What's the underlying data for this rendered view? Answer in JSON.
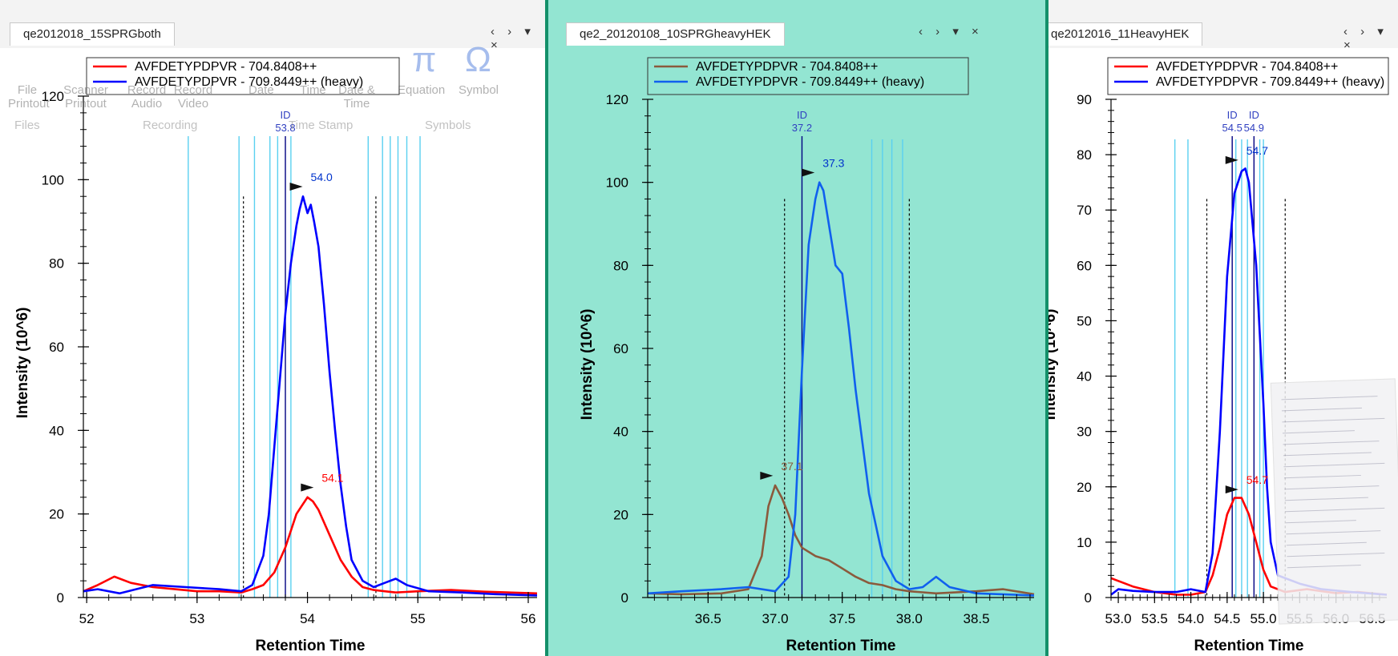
{
  "panels": [
    {
      "id": "p1",
      "tab": "qe2012018_15SPRGboth",
      "tab_controls": "‹ › ▾ ×",
      "chart_type": "line",
      "xlabel": "Retention Time",
      "ylabel": "Intensity (10^6)",
      "xlim": [
        51.97,
        56.08
      ],
      "ylim": [
        0,
        120
      ],
      "xticks": [
        "52",
        "53",
        "54",
        "55",
        "56"
      ],
      "xtick_values": [
        52,
        53,
        54,
        55,
        56
      ],
      "yticks": [
        "0",
        "20",
        "40",
        "60",
        "80",
        "100",
        "120"
      ],
      "ytick_values": [
        0,
        20,
        40,
        60,
        80,
        100,
        120
      ],
      "legend": [
        {
          "label": "AVFDETYPDPVR - 704.8408++",
          "color": "#ff0000"
        },
        {
          "label": "AVFDETYPDPVR - 709.8449++ (heavy)",
          "color": "#0000ff"
        }
      ],
      "series": [
        {
          "name": "AVFDETYPDPVR - 704.8408++",
          "color": "#ff0000",
          "x": [
            51.97,
            52.1,
            52.25,
            52.4,
            52.6,
            52.8,
            53.0,
            53.2,
            53.4,
            53.5,
            53.6,
            53.7,
            53.8,
            53.85,
            53.9,
            53.95,
            54.0,
            54.05,
            54.1,
            54.2,
            54.3,
            54.4,
            54.5,
            54.6,
            54.7,
            54.8,
            55.0,
            55.3,
            55.6,
            56.08
          ],
          "y": [
            1.5,
            3,
            5,
            3.5,
            2.5,
            2,
            1.5,
            1.5,
            1.2,
            2,
            3,
            6,
            12,
            16,
            20,
            22,
            24,
            23,
            21,
            15,
            9,
            5,
            2.5,
            1.8,
            1.5,
            1.2,
            1.5,
            1.8,
            1.4,
            1.0
          ]
        },
        {
          "name": "AVFDETYPDPVR - 709.8449++ (heavy)",
          "color": "#0000ff",
          "x": [
            51.97,
            52.1,
            52.3,
            52.6,
            52.9,
            53.2,
            53.4,
            53.5,
            53.6,
            53.65,
            53.7,
            53.75,
            53.8,
            53.85,
            53.9,
            53.93,
            53.96,
            54.0,
            54.03,
            54.06,
            54.1,
            54.15,
            54.2,
            54.25,
            54.3,
            54.35,
            54.4,
            54.5,
            54.6,
            54.7,
            54.8,
            54.9,
            55.1,
            55.4,
            55.7,
            56.08
          ],
          "y": [
            1.5,
            2,
            1,
            3,
            2.5,
            2,
            1.5,
            3,
            10,
            20,
            36,
            52,
            68,
            80,
            89,
            93,
            96,
            92,
            94,
            90,
            84,
            70,
            54,
            40,
            27,
            17,
            9,
            4,
            2.5,
            3.5,
            4.5,
            3,
            1.5,
            1.2,
            0.8,
            0.5
          ]
        }
      ],
      "apex_labels": [
        {
          "text": "54.0",
          "x": 54.0,
          "y": 97,
          "color": "#0033cc"
        },
        {
          "text": "54.1",
          "x": 54.1,
          "y": 25,
          "color": "#ff0000"
        }
      ],
      "id_markers": [
        {
          "label": "ID",
          "value": "53.8",
          "x": 53.8
        }
      ],
      "integration_bounds": [
        53.42,
        54.62
      ],
      "cyan_lines": [
        52.92,
        53.38,
        53.52,
        53.66,
        53.73,
        53.85,
        54.55,
        54.68,
        54.75,
        54.82,
        54.9,
        55.02
      ]
    },
    {
      "id": "p2",
      "tab": "qe2_20120108_10SPRGheavyHEK",
      "tab_controls": "‹ › ▾ ×",
      "chart_type": "line",
      "xlabel": "Retention Time",
      "ylabel": "Intensity (10^6)",
      "xlim": [
        36.05,
        38.93
      ],
      "ylim": [
        0,
        120
      ],
      "xticks": [
        "36.5",
        "37.0",
        "37.5",
        "38.0",
        "38.5"
      ],
      "xtick_values": [
        36.5,
        37.0,
        37.5,
        38.0,
        38.5
      ],
      "yticks": [
        "0",
        "20",
        "40",
        "60",
        "80",
        "100",
        "120"
      ],
      "ytick_values": [
        0,
        20,
        40,
        60,
        80,
        100,
        120
      ],
      "legend": [
        {
          "label": "AVFDETYPDPVR - 704.8408++",
          "color": "#8b5a3c"
        },
        {
          "label": "AVFDETYPDPVR - 709.8449++ (heavy)",
          "color": "#1060ee"
        }
      ],
      "series": [
        {
          "name": "AVFDETYPDPVR - 704.8408++",
          "color": "#8b5a3c",
          "x": [
            36.05,
            36.3,
            36.6,
            36.8,
            36.9,
            36.95,
            37.0,
            37.05,
            37.1,
            37.15,
            37.2,
            37.3,
            37.4,
            37.5,
            37.6,
            37.7,
            37.8,
            37.9,
            38.0,
            38.2,
            38.5,
            38.7,
            38.93
          ],
          "y": [
            1,
            0.8,
            1,
            2,
            10,
            22,
            27,
            24,
            20,
            15,
            12,
            10,
            9,
            7,
            5,
            3.5,
            3,
            2,
            1.5,
            1,
            1.5,
            2,
            0.8
          ]
        },
        {
          "name": "AVFDETYPDPVR - 709.8449++ (heavy)",
          "color": "#1060ee",
          "x": [
            36.05,
            36.3,
            36.6,
            36.8,
            37.0,
            37.1,
            37.15,
            37.2,
            37.25,
            37.3,
            37.33,
            37.36,
            37.4,
            37.45,
            37.5,
            37.55,
            37.6,
            37.7,
            37.8,
            37.9,
            38.0,
            38.1,
            38.2,
            38.3,
            38.5,
            38.93
          ],
          "y": [
            1,
            1.5,
            2,
            2.5,
            1.5,
            5,
            20,
            55,
            85,
            96,
            100,
            98,
            90,
            80,
            78,
            65,
            50,
            25,
            10,
            4,
            2,
            2.5,
            5,
            2.5,
            1,
            0.5
          ]
        }
      ],
      "apex_labels": [
        {
          "text": "37.3",
          "x": 37.33,
          "y": 101,
          "color": "#0033cc"
        },
        {
          "text": "37.1",
          "x": 37.02,
          "y": 28,
          "color": "#8b5a3c"
        }
      ],
      "id_markers": [
        {
          "label": "ID",
          "value": "37.2",
          "x": 37.2
        }
      ],
      "integration_bounds": [
        37.07,
        38.0
      ],
      "cyan_lines": [
        37.72,
        37.8,
        37.87,
        37.95
      ]
    },
    {
      "id": "p3",
      "tab": "qe2012016_11HeavyHEK",
      "tab_controls": "‹ › ▾ ×",
      "chart_type": "line",
      "xlabel": "Retention Time",
      "ylabel": "Intensity (10^6)",
      "xlim": [
        52.9,
        56.7
      ],
      "ylim": [
        0,
        90
      ],
      "xticks": [
        "53.0",
        "53.5",
        "54.0",
        "54.5",
        "55.0",
        "55.5",
        "56.0",
        "56.5"
      ],
      "xtick_values": [
        53.0,
        53.5,
        54.0,
        54.5,
        55.0,
        55.5,
        56.0,
        56.5
      ],
      "yticks": [
        "0",
        "10",
        "20",
        "30",
        "40",
        "50",
        "60",
        "70",
        "80",
        "90"
      ],
      "ytick_values": [
        0,
        10,
        20,
        30,
        40,
        50,
        60,
        70,
        80,
        90
      ],
      "legend": [
        {
          "label": "AVFDETYPDPVR - 704.8408++",
          "color": "#ff0000"
        },
        {
          "label": "AVFDETYPDPVR - 709.8449++ (heavy)",
          "color": "#0000ff"
        }
      ],
      "series": [
        {
          "name": "AVFDETYPDPVR - 704.8408++",
          "color": "#ff0000",
          "x": [
            52.9,
            53.0,
            53.2,
            53.5,
            53.8,
            54.0,
            54.2,
            54.3,
            54.4,
            54.5,
            54.6,
            54.7,
            54.8,
            54.9,
            55.0,
            55.1,
            55.3,
            55.6,
            56.0,
            56.3,
            56.7
          ],
          "y": [
            3.5,
            3,
            2,
            1,
            0.5,
            0.5,
            1,
            4,
            9,
            15,
            18,
            18,
            15,
            10,
            5,
            2,
            1,
            1.5,
            0.8,
            1,
            0.5
          ]
        },
        {
          "name": "AVFDETYPDPVR - 709.8449++ (heavy)",
          "color": "#0000ff",
          "x": [
            52.9,
            53.0,
            53.2,
            53.5,
            53.8,
            54.0,
            54.2,
            54.3,
            54.4,
            54.5,
            54.6,
            54.7,
            54.75,
            54.8,
            54.9,
            55.0,
            55.05,
            55.1,
            55.2,
            55.5,
            55.8,
            56.2,
            56.7
          ],
          "y": [
            0.5,
            1.5,
            1.2,
            1,
            1,
            1.5,
            1,
            8,
            30,
            58,
            73,
            77,
            77.5,
            75,
            60,
            35,
            20,
            10,
            4,
            2.5,
            1.5,
            1,
            0.5
          ]
        }
      ],
      "apex_labels": [
        {
          "text": "54.7",
          "x": 54.72,
          "y": 78,
          "color": "#0033cc"
        },
        {
          "text": "54.7",
          "x": 54.72,
          "y": 18.5,
          "color": "#ff0000"
        }
      ],
      "id_markers": [
        {
          "label": "ID",
          "value": "54.5",
          "x": 54.57
        },
        {
          "label": "ID",
          "value": "54.9",
          "x": 54.87
        }
      ],
      "integration_bounds": [
        54.22,
        55.3
      ],
      "cyan_lines": [
        53.78,
        53.96,
        54.62,
        54.7,
        54.78,
        54.95,
        55.0
      ]
    }
  ],
  "ribbon": {
    "items": [
      "File Printout",
      "Scanner Printout",
      "Record Audio",
      "Record Video",
      "Date",
      "Time",
      "Date & Time",
      "Equation",
      "Symbol"
    ],
    "groups": [
      "Files",
      "Recording",
      "Time Stamp",
      "Symbols"
    ],
    "glyphs": {
      "pi": "π",
      "omega": "Ω"
    }
  },
  "colors": {
    "highlight_fill": "#93e5d2",
    "highlight_border": "#14906a",
    "cyan_line": "#5ad0f0",
    "id_line": "#000080"
  }
}
